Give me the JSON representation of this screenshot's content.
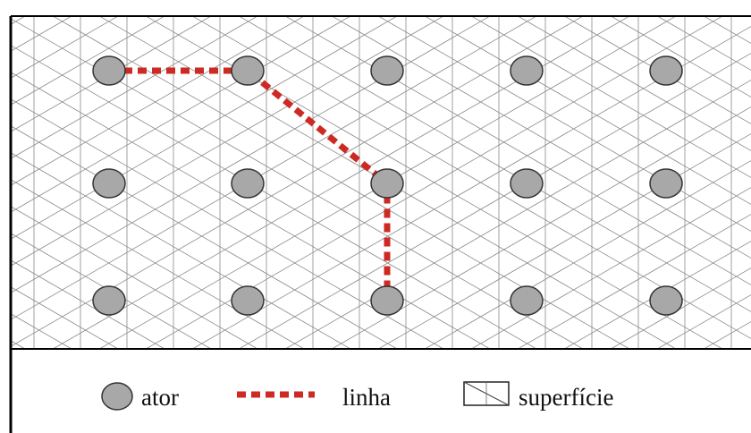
{
  "diagram": {
    "grid_color": "#8a8a8a",
    "frame_color": "#000000",
    "line_color": "#cc2a22",
    "actor_fill": "#a8a8a8",
    "actor_stroke": "#333333",
    "actors_grid": {
      "rows": 3,
      "cols": 5
    },
    "path_nodes": [
      {
        "row": 0,
        "col": 0
      },
      {
        "row": 0,
        "col": 1
      },
      {
        "row": 1,
        "col": 2
      },
      {
        "row": 2,
        "col": 2
      }
    ],
    "legend": {
      "actor_label": "ator",
      "line_label": "linha",
      "surface_label": "superfície"
    }
  }
}
